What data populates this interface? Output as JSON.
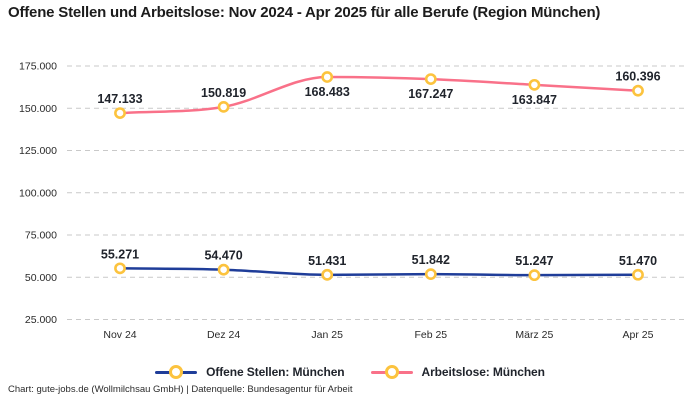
{
  "title": "Offene Stellen und Arbeitslose: Nov 2024 - Apr 2025 für alle Berufe (Region München)",
  "footer": "Chart: gute-jobs.de (Wollmilchsau GmbH) | Datenquelle: Bundesagentur für Arbeit",
  "colors": {
    "offene_stellen": "#1f3d99",
    "arbeitslose": "#f97189",
    "marker_ring": "#fcc33e",
    "marker_fill": "#ffffff",
    "grid": "#c9c9c9",
    "tick_text": "#2a2a2a",
    "data_label": "#20242c"
  },
  "chart_data": {
    "type": "line",
    "title": "Offene Stellen und Arbeitslose: Nov 2024 - Apr 2025 für alle Berufe (Region München)",
    "categories": [
      "Nov 24",
      "Dez 24",
      "Jan 25",
      "Feb 25",
      "März 25",
      "Apr 25"
    ],
    "series": [
      {
        "name": "Offene Stellen: München",
        "values": [
          55271,
          54470,
          51431,
          51842,
          51247,
          51470
        ],
        "value_labels": [
          "55.271",
          "54.470",
          "51.431",
          "51.842",
          "51.247",
          "51.470"
        ],
        "label_positions": [
          "above",
          "above",
          "above",
          "above",
          "above",
          "above"
        ],
        "color_key": "offene_stellen"
      },
      {
        "name": "Arbeitslose: München",
        "values": [
          147133,
          150819,
          168483,
          167247,
          163847,
          160396
        ],
        "value_labels": [
          "147.133",
          "150.819",
          "168.483",
          "167.247",
          "163.847",
          "160.396"
        ],
        "label_positions": [
          "above",
          "above",
          "below",
          "below",
          "below",
          "above"
        ],
        "color_key": "arbeitslose"
      }
    ],
    "y_ticks": [
      175000,
      150000,
      125000,
      100000,
      75000,
      50000,
      25000
    ],
    "y_tick_labels": [
      "175.000",
      "150.000",
      "125.000",
      "100.000",
      "75.000",
      "50.000",
      "25.000"
    ],
    "ylim": [
      25000,
      175000
    ],
    "xlabel": "",
    "ylabel": "",
    "grid": "horizontal-dashed",
    "curve": "monotone",
    "legend_position": "bottom"
  }
}
